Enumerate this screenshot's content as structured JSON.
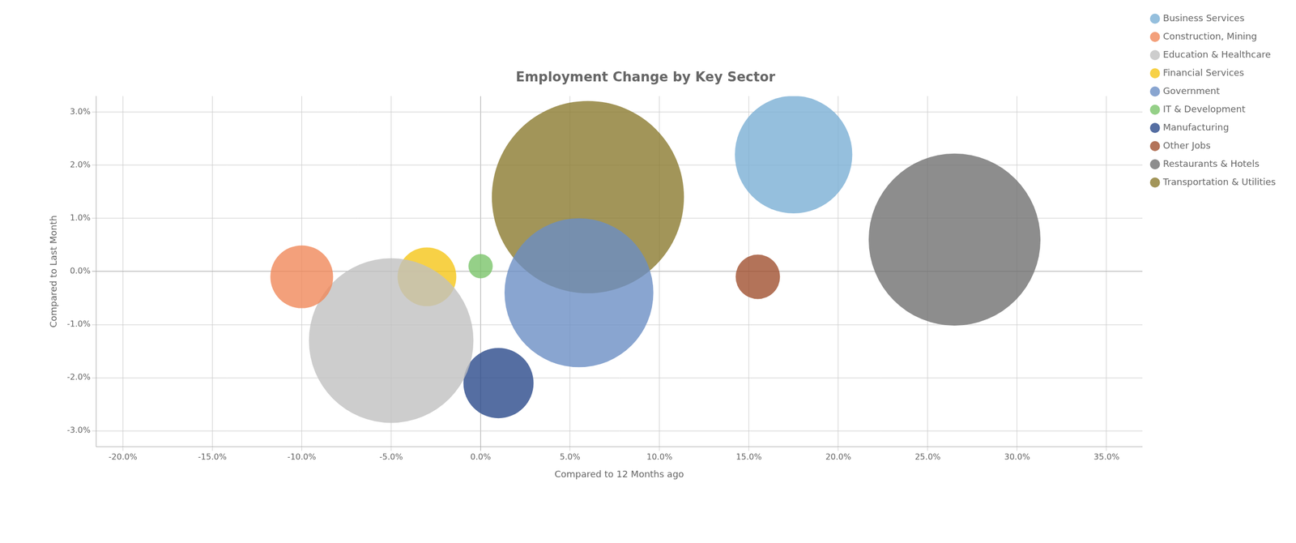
{
  "chart_data": {
    "type": "bubble",
    "title": "Employment Change by Key Sector",
    "xlabel": "Compared to 12 Months ago",
    "ylabel": "Compared to Last Month",
    "xlim": [
      -0.215,
      0.37
    ],
    "ylim": [
      -0.033,
      0.033
    ],
    "xticks": [
      {
        "value": -0.2,
        "label": "-20.0%"
      },
      {
        "value": -0.15,
        "label": "-15.0%"
      },
      {
        "value": -0.1,
        "label": "-10.0%"
      },
      {
        "value": -0.05,
        "label": "-5.0%"
      },
      {
        "value": 0,
        "label": "0.0%"
      },
      {
        "value": 0.05,
        "label": "5.0%"
      },
      {
        "value": 0.1,
        "label": "10.0%"
      },
      {
        "value": 0.15,
        "label": "15.0%"
      },
      {
        "value": 0.2,
        "label": "20.0%"
      },
      {
        "value": 0.25,
        "label": "25.0%"
      },
      {
        "value": 0.3,
        "label": "30.0%"
      },
      {
        "value": 0.35,
        "label": "35.0%"
      }
    ],
    "yticks": [
      {
        "value": -0.03,
        "label": "-3.0%"
      },
      {
        "value": -0.02,
        "label": "-2.0%"
      },
      {
        "value": -0.01,
        "label": "-1.0%"
      },
      {
        "value": 0,
        "label": "0.0%"
      },
      {
        "value": 0.01,
        "label": "1.0%"
      },
      {
        "value": 0.02,
        "label": "2.0%"
      },
      {
        "value": 0.03,
        "label": "3.0%"
      }
    ],
    "grid": true,
    "legend": "right",
    "series": [
      {
        "name": "Business Services",
        "color": "#7aafd4",
        "x": [
          0.175
        ],
        "values": [
          0.022
        ],
        "size": [
          28000
        ]
      },
      {
        "name": "Construction, Mining",
        "color": "#f0885a",
        "x": [
          -0.1
        ],
        "values": [
          -0.001
        ],
        "size": [
          8000
        ]
      },
      {
        "name": "Education & Healthcare",
        "color": "#c0c0c0",
        "x": [
          -0.05
        ],
        "values": [
          -0.013
        ],
        "size": [
          55000
        ]
      },
      {
        "name": "Financial Services",
        "color": "#f5c518",
        "x": [
          -0.03
        ],
        "values": [
          -0.001
        ],
        "size": [
          7000
        ]
      },
      {
        "name": "Government",
        "color": "#6b8fc4",
        "x": [
          0.055
        ],
        "values": [
          -0.004
        ],
        "size": [
          45000
        ]
      },
      {
        "name": "IT & Development",
        "color": "#7ac46a",
        "x": [
          0.0
        ],
        "values": [
          0.001
        ],
        "size": [
          1200
        ]
      },
      {
        "name": "Manufacturing",
        "color": "#2b4a8b",
        "x": [
          0.01
        ],
        "values": [
          -0.021
        ],
        "size": [
          10000
        ]
      },
      {
        "name": "Other Jobs",
        "color": "#a05030",
        "x": [
          0.155
        ],
        "values": [
          -0.001
        ],
        "size": [
          4000
        ]
      },
      {
        "name": "Restaurants & Hotels",
        "color": "#707070",
        "x": [
          0.265
        ],
        "values": [
          0.006
        ],
        "size": [
          60000
        ]
      },
      {
        "name": "Transportation & Utilities",
        "color": "#8b7a30",
        "x": [
          0.06
        ],
        "values": [
          0.014
        ],
        "size": [
          75000
        ]
      }
    ]
  }
}
